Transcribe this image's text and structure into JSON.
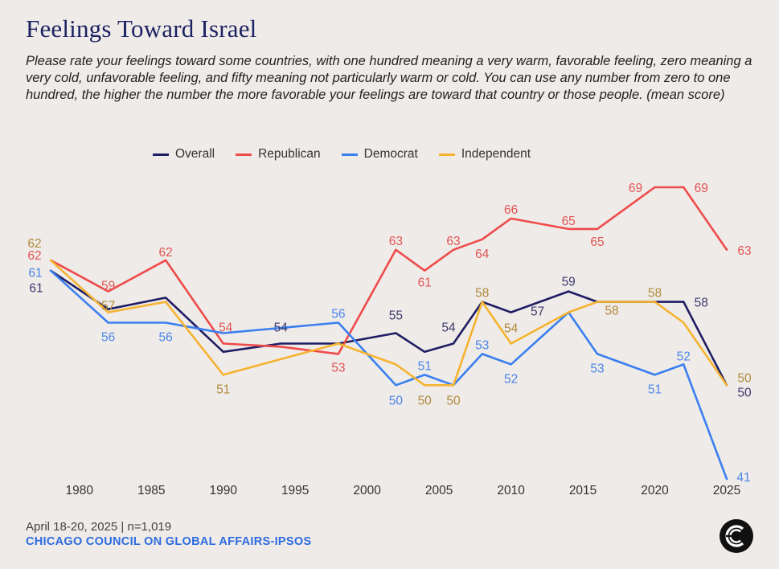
{
  "title": "Feelings Toward Israel",
  "subtitle": "Please rate your feelings toward some countries, with one hundred meaning a very warm, favorable feeling, zero meaning a very cold, unfavorable feeling, and fifty meaning not particularly warm or cold. You can use any number from zero to one hundred, the higher the number the more favorable your feelings are toward that country or those people. (mean score)",
  "footer": {
    "date": "April 18-20, 2025 | n=1,019",
    "source": "CHICAGO COUNCIL ON GLOBAL AFFAIRS-IPSOS"
  },
  "chart_data": {
    "type": "line",
    "title": "Feelings Toward Israel",
    "xlabel": "",
    "ylabel": "",
    "xlim": [
      1976.5,
      2025.5
    ],
    "ylim": [
      40,
      72
    ],
    "grid": false,
    "legend_position": "top",
    "x_ticks": [
      1980,
      1985,
      1990,
      1995,
      2000,
      2005,
      2010,
      2015,
      2020,
      2025
    ],
    "series": [
      {
        "name": "Overall",
        "color": "#1f1d63",
        "label_color": "#3b3a6e",
        "points": [
          [
            1978,
            61
          ],
          [
            1982,
            57.3
          ],
          [
            1986,
            58.4
          ],
          [
            1990,
            53.2
          ],
          [
            1994,
            54
          ],
          [
            1998,
            54
          ],
          [
            2002,
            55
          ],
          [
            2004,
            53.2
          ],
          [
            2006,
            54
          ],
          [
            2008,
            58
          ],
          [
            2010,
            57
          ],
          [
            2014,
            59
          ],
          [
            2016,
            58
          ],
          [
            2022,
            58
          ],
          [
            2025,
            50
          ]
        ],
        "labels": [
          {
            "x": 1978,
            "text": "61"
          },
          {
            "x": 1994,
            "text": "54"
          },
          {
            "x": 2002,
            "text": "55"
          },
          {
            "x": 2006,
            "text": "54"
          },
          {
            "x": 2010,
            "text": "57"
          },
          {
            "x": 2014,
            "text": "59"
          },
          {
            "x": 2022,
            "text": "58"
          },
          {
            "x": 2025,
            "text": "50"
          }
        ]
      },
      {
        "name": "Republican",
        "color": "#ee4b4b",
        "label_color": "#e05555",
        "points": [
          [
            1978,
            62
          ],
          [
            1982,
            59
          ],
          [
            1986,
            62
          ],
          [
            1990,
            54
          ],
          [
            1994,
            53.7
          ],
          [
            1998,
            53
          ],
          [
            2002,
            63
          ],
          [
            2004,
            61
          ],
          [
            2006,
            63
          ],
          [
            2008,
            64
          ],
          [
            2010,
            66
          ],
          [
            2014,
            65
          ],
          [
            2016,
            65
          ],
          [
            2020,
            69
          ],
          [
            2022,
            69
          ],
          [
            2025,
            63
          ]
        ],
        "labels": [
          {
            "x": 1978,
            "text": "62"
          },
          {
            "x": 1982,
            "text": "59"
          },
          {
            "x": 1986,
            "text": "62"
          },
          {
            "x": 1990,
            "text": "54"
          },
          {
            "x": 1998,
            "text": "53"
          },
          {
            "x": 2002,
            "text": "63"
          },
          {
            "x": 2004,
            "text": "61"
          },
          {
            "x": 2006,
            "text": "63"
          },
          {
            "x": 2008,
            "text": "64"
          },
          {
            "x": 2010,
            "text": "66"
          },
          {
            "x": 2014,
            "text": "65"
          },
          {
            "x": 2016,
            "text": "65"
          },
          {
            "x": 2020,
            "text": "69"
          },
          {
            "x": 2022,
            "text": "69"
          },
          {
            "x": 2025,
            "text": "63"
          }
        ]
      },
      {
        "name": "Democrat",
        "color": "#3a7ff0",
        "label_color": "#4a86ea",
        "points": [
          [
            1978,
            61
          ],
          [
            1982,
            56
          ],
          [
            1986,
            56
          ],
          [
            1990,
            55
          ],
          [
            1998,
            56
          ],
          [
            2002,
            50
          ],
          [
            2004,
            51
          ],
          [
            2006,
            50
          ],
          [
            2008,
            53
          ],
          [
            2010,
            52
          ],
          [
            2014,
            57
          ],
          [
            2016,
            53
          ],
          [
            2020,
            51
          ],
          [
            2022,
            52
          ],
          [
            2025,
            41
          ]
        ],
        "labels": [
          {
            "x": 1978,
            "text": "61"
          },
          {
            "x": 1982,
            "text": "56"
          },
          {
            "x": 1986,
            "text": "56"
          },
          {
            "x": 1998,
            "text": "56"
          },
          {
            "x": 2002,
            "text": "50"
          },
          {
            "x": 2004,
            "text": "51"
          },
          {
            "x": 2008,
            "text": "53"
          },
          {
            "x": 2010,
            "text": "52"
          },
          {
            "x": 2016,
            "text": "53"
          },
          {
            "x": 2020,
            "text": "51"
          },
          {
            "x": 2022,
            "text": "52"
          },
          {
            "x": 2025,
            "text": "41"
          }
        ]
      },
      {
        "name": "Independent",
        "color": "#f5b330",
        "label_color": "#b08a3c",
        "points": [
          [
            1978,
            62
          ],
          [
            1982,
            57
          ],
          [
            1986,
            58
          ],
          [
            1990,
            51
          ],
          [
            1994,
            52.5
          ],
          [
            1998,
            54
          ],
          [
            2002,
            52
          ],
          [
            2004,
            50
          ],
          [
            2006,
            50
          ],
          [
            2008,
            58
          ],
          [
            2010,
            54
          ],
          [
            2014,
            57
          ],
          [
            2016,
            58
          ],
          [
            2020,
            58
          ],
          [
            2022,
            56
          ],
          [
            2025,
            50
          ]
        ],
        "labels": [
          {
            "x": 1978,
            "text": "62"
          },
          {
            "x": 1982,
            "text": "57"
          },
          {
            "x": 1990,
            "text": "51"
          },
          {
            "x": 2004,
            "text": "50"
          },
          {
            "x": 2006,
            "text": "50"
          },
          {
            "x": 2008,
            "text": "58"
          },
          {
            "x": 2010,
            "text": "54"
          },
          {
            "x": 2016,
            "text": "58"
          },
          {
            "x": 2020,
            "text": "58"
          },
          {
            "x": 2025,
            "text": "50"
          }
        ]
      }
    ]
  }
}
